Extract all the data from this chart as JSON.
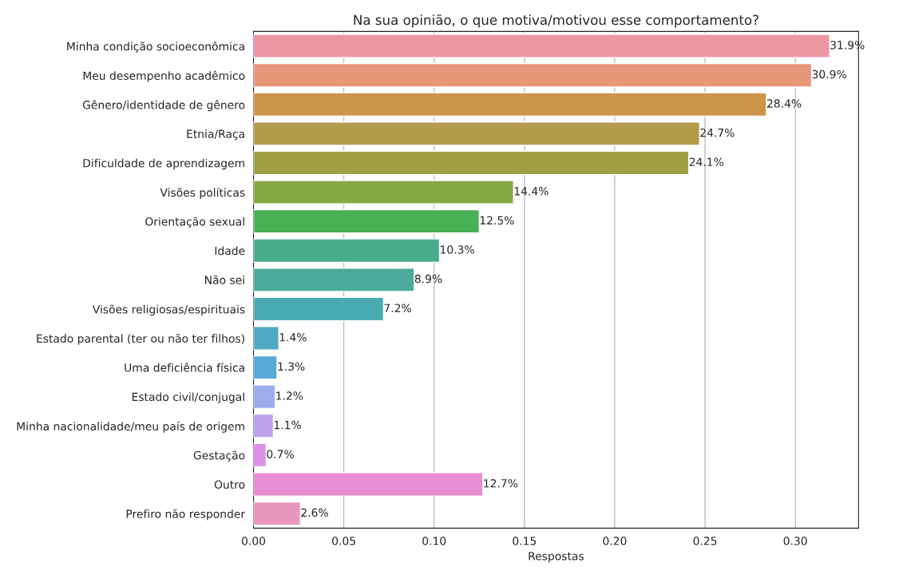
{
  "chart_data": {
    "type": "bar",
    "orientation": "horizontal",
    "title": "Na sua opinião, o que motiva/motivou esse comportamento?",
    "xlabel": "Respostas",
    "categories": [
      "Minha condição socioeconômica",
      "Meu desempenho acadêmico",
      "Gênero/identidade de gênero",
      "Etnia/Raça",
      "Dificuldade de aprendizagem",
      "Visões políticas",
      "Orientação sexual",
      "Idade",
      "Não sei",
      "Visões religiosas/espirituais",
      "Estado parental (ter ou não ter filhos)",
      "Uma deficiência física",
      "Estado civil/conjugal",
      "Minha nacionalidade/meu país de origem",
      "Gestação",
      "Outro",
      "Prefiro não responder"
    ],
    "values": [
      0.319,
      0.309,
      0.284,
      0.247,
      0.241,
      0.144,
      0.125,
      0.103,
      0.089,
      0.072,
      0.014,
      0.013,
      0.012,
      0.011,
      0.007,
      0.127,
      0.026
    ],
    "value_labels": [
      "31.9%",
      "30.9%",
      "28.4%",
      "24.7%",
      "24.1%",
      "14.4%",
      "12.5%",
      "10.3%",
      "8.9%",
      "7.2%",
      "1.4%",
      "1.3%",
      "1.2%",
      "1.1%",
      "0.7%",
      "12.7%",
      "2.6%"
    ],
    "colors": [
      "#ea96a3",
      "#e8967a",
      "#cd9549",
      "#b49a4b",
      "#9fa043",
      "#84a944",
      "#48b055",
      "#49ad8a",
      "#4aab9c",
      "#4aabb2",
      "#4ea9c4",
      "#58a9d8",
      "#9caced",
      "#bca3ea",
      "#dc8ee8",
      "#e68dd3",
      "#e896bd"
    ],
    "xlim": [
      0,
      0.335
    ],
    "xticks": [
      {
        "value": 0,
        "label": "0.00"
      },
      {
        "value": 0.05,
        "label": "0.05"
      },
      {
        "value": 0.1,
        "label": "0.10"
      },
      {
        "value": 0.15,
        "label": "0.15"
      },
      {
        "value": 0.2,
        "label": "0.20"
      },
      {
        "value": 0.25,
        "label": "0.25"
      },
      {
        "value": 0.3,
        "label": "0.30"
      }
    ],
    "grid": "x"
  }
}
